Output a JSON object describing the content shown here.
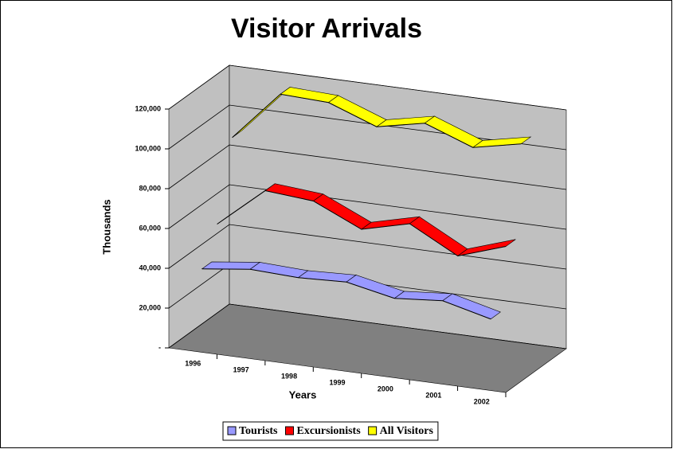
{
  "chart_data": {
    "type": "line3d",
    "title": "Visitor Arrivals",
    "x_label": "Years",
    "y_label": "Thousands",
    "categories": [
      "1996",
      "1997",
      "1998",
      "1999",
      "2000",
      "2001",
      "2002"
    ],
    "series": [
      {
        "name": "Tourists",
        "color": "#9999ff",
        "values": [
          38000,
          41000,
          40000,
          41000,
          36000,
          38000,
          32000
        ]
      },
      {
        "name": "Excursionists",
        "color": "#ff0000",
        "values": [
          55000,
          75000,
          73000,
          62000,
          68000,
          55000,
          63000
        ]
      },
      {
        "name": "All Visitors",
        "color": "#ffff00",
        "values": [
          93000,
          118000,
          117000,
          108000,
          113000,
          104000,
          109000
        ]
      }
    ],
    "ylim": [
      0,
      120000
    ],
    "yticks": [
      {
        "value": 0,
        "label": "-"
      },
      {
        "value": 20000,
        "label": "20,000"
      },
      {
        "value": 40000,
        "label": "40,000"
      },
      {
        "value": 60000,
        "label": "60,000"
      },
      {
        "value": 80000,
        "label": "80,000"
      },
      {
        "value": 100000,
        "label": "100,000"
      },
      {
        "value": 120000,
        "label": "120,000"
      }
    ],
    "grid": true,
    "legend": "bottom"
  }
}
